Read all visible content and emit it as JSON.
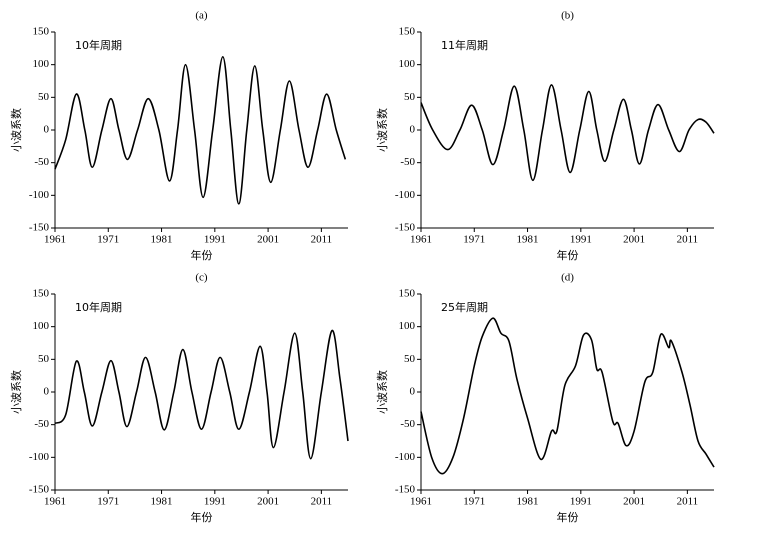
{
  "chart_data": [
    {
      "type": "line",
      "title": "(a)",
      "annotation": "10年周期",
      "xlabel": "年份",
      "ylabel": "小波系数",
      "color": "#000000",
      "x": [
        1961,
        1963,
        1965,
        1966.6,
        1968,
        1969.8,
        1971.5,
        1973,
        1974.6,
        1976.5,
        1978.5,
        1980.5,
        1982.5,
        1984,
        1985.5,
        1987.2,
        1988.8,
        1990.6,
        1992.5,
        1994,
        1995.5,
        1997,
        1998.5,
        2000,
        2001.5,
        2003.3,
        2005,
        2006.8,
        2008.5,
        2010.3,
        2012,
        2013.8,
        2015.5
      ],
      "values": [
        -60,
        -15,
        55,
        0,
        -57,
        0,
        48,
        0,
        -45,
        0,
        48,
        0,
        -78,
        0,
        100,
        0,
        -103,
        0,
        112,
        0,
        -113,
        0,
        98,
        0,
        -80,
        0,
        75,
        0,
        -57,
        0,
        55,
        0,
        -45
      ],
      "xlim": [
        1961,
        2016
      ],
      "xticks": [
        1961,
        1971,
        1981,
        1991,
        2001,
        2011
      ],
      "ylim": [
        -150,
        150
      ],
      "yticks": [
        -150,
        -100,
        -50,
        0,
        50,
        100,
        150
      ]
    },
    {
      "type": "line",
      "title": "(b)",
      "annotation": "11年周期",
      "xlabel": "年份",
      "ylabel": "小波系数",
      "color": "#000000",
      "x": [
        1961,
        1963.2,
        1966,
        1968.3,
        1970.5,
        1972.5,
        1974.5,
        1976.5,
        1978.5,
        1980.3,
        1982,
        1983.8,
        1985.5,
        1987.3,
        1989,
        1990.8,
        1992.5,
        1994,
        1995.5,
        1997.2,
        1999,
        2000.5,
        2002,
        2003.7,
        2005.5,
        2007.5,
        2009.5,
        2011.3,
        2013,
        2014.5,
        2016
      ],
      "values": [
        42,
        0,
        -30,
        0,
        38,
        0,
        -53,
        0,
        67,
        0,
        -77,
        0,
        69,
        0,
        -65,
        0,
        59,
        0,
        -48,
        0,
        47,
        0,
        -52,
        0,
        39,
        0,
        -33,
        0,
        16,
        12,
        -5
      ],
      "xlim": [
        1961,
        2016
      ],
      "xticks": [
        1961,
        1971,
        1981,
        1991,
        2001,
        2011
      ],
      "ylim": [
        -150,
        150
      ],
      "yticks": [
        -150,
        -100,
        -50,
        0,
        50,
        100,
        150
      ]
    },
    {
      "type": "line",
      "title": "(c)",
      "annotation": "10年周期",
      "xlabel": "年份",
      "ylabel": "小波系数",
      "color": "#000000",
      "x": [
        1961,
        1963,
        1965,
        1966.5,
        1968,
        1969.8,
        1971.5,
        1973,
        1974.5,
        1976.3,
        1978,
        1979.8,
        1981.5,
        1983.3,
        1985,
        1986.7,
        1988.5,
        1990.3,
        1992,
        1993.8,
        1995.5,
        1997.5,
        1999.5,
        2000.8,
        2002,
        2004,
        2006,
        2007.5,
        2009,
        2011,
        2013,
        2014.5,
        2016
      ],
      "values": [
        -48,
        -35,
        47,
        0,
        -52,
        0,
        48,
        0,
        -53,
        0,
        53,
        0,
        -58,
        0,
        65,
        0,
        -57,
        0,
        53,
        0,
        -57,
        0,
        70,
        0,
        -85,
        0,
        90,
        0,
        -102,
        0,
        94,
        20,
        -75
      ],
      "xlim": [
        1961,
        2016
      ],
      "xticks": [
        1961,
        1971,
        1981,
        1991,
        2001,
        2011
      ],
      "ylim": [
        -150,
        150
      ],
      "yticks": [
        -150,
        -100,
        -50,
        0,
        50,
        100,
        150
      ]
    },
    {
      "type": "line",
      "title": "(d)",
      "annotation": "25年周期",
      "xlabel": "年份",
      "ylabel": "小波系数",
      "color": "#000000",
      "x": [
        1961,
        1963,
        1965,
        1967,
        1969,
        1971,
        1972.5,
        1974.5,
        1976,
        1977.5,
        1979,
        1981,
        1983.5,
        1985.5,
        1986.5,
        1988,
        1990,
        1991.5,
        1993,
        1994,
        1995,
        1997,
        1998,
        1999.5,
        2001,
        2003,
        2004.5,
        2006,
        2007.5,
        2008,
        2010,
        2011.5,
        2013,
        2014.5,
        2016
      ],
      "values": [
        -30,
        -100,
        -125,
        -100,
        -40,
        40,
        85,
        113,
        90,
        78,
        20,
        -40,
        -103,
        -60,
        -60,
        10,
        40,
        87,
        80,
        35,
        30,
        -45,
        -48,
        -82,
        -60,
        15,
        30,
        88,
        68,
        78,
        30,
        -20,
        -75,
        -95,
        -115
      ],
      "xlim": [
        1961,
        2016
      ],
      "xticks": [
        1961,
        1971,
        1981,
        1991,
        2001,
        2011
      ],
      "ylim": [
        -150,
        150
      ],
      "yticks": [
        -150,
        -100,
        -50,
        0,
        50,
        100,
        150
      ]
    }
  ]
}
